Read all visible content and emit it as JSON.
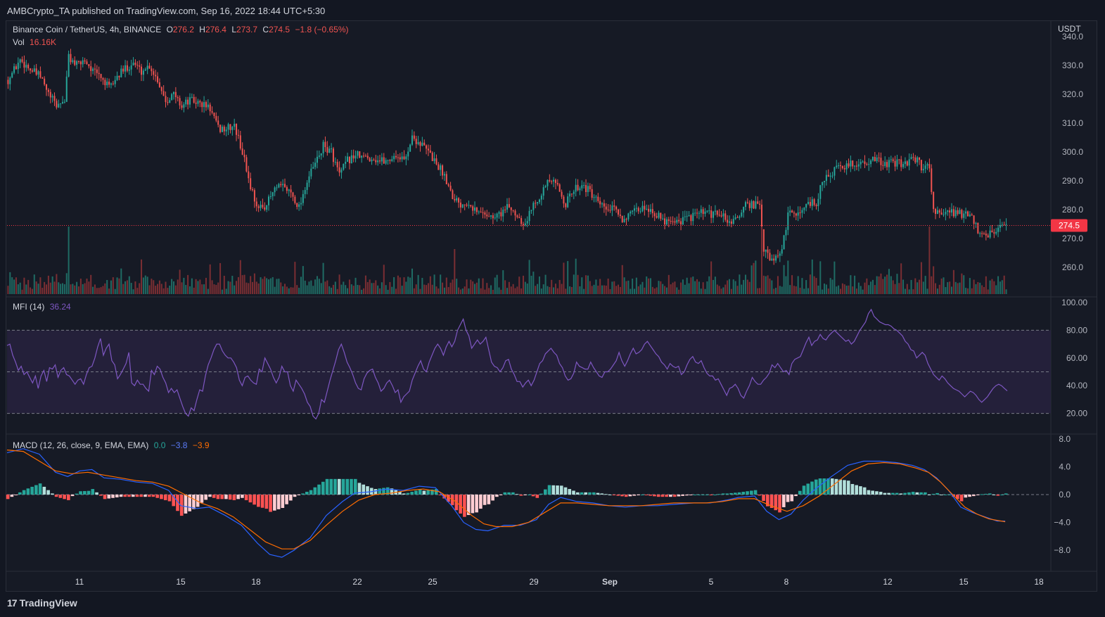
{
  "publisher_line": "AMBCrypto_TA published on TradingView.com, Sep 16, 2022 18:44 UTC+5:30",
  "footer_brand": "TradingView",
  "colors": {
    "up": "#26a69a",
    "down": "#ef5350",
    "up_vol": "#1f6b64",
    "down_vol": "#7a2e33",
    "mfi_line": "#7e57c2",
    "mfi_band": "#2a2342",
    "macd_line": "#2962ff",
    "signal_line": "#ff6d00",
    "hist_up_strong": "#26a69a",
    "hist_up_weak": "#b2dfdb",
    "hist_down_strong": "#ff5252",
    "hist_down_weak": "#ffcdd2",
    "price_tag": "#f23645"
  },
  "price_legend": {
    "symbol": "Binance Coin / TetherUS, 4h, BINANCE",
    "o_label": "O",
    "o_value": "276.2",
    "h_label": "H",
    "h_value": "276.4",
    "l_label": "L",
    "l_value": "273.7",
    "c_label": "C",
    "c_value": "274.5",
    "change": "−1.8 (−0.65%)"
  },
  "vol_legend": {
    "label": "Vol",
    "value": "16.16K"
  },
  "mfi_legend": {
    "label": "MFI (14)",
    "value": "36.24"
  },
  "macd_legend": {
    "label": "MACD (12, 26, close, 9, EMA, EMA)",
    "hist": "0.0",
    "macd": "−3.8",
    "signal": "−3.9"
  },
  "price_axis": {
    "currency": "USDT",
    "current_price": "274.5"
  },
  "chart_data": [
    {
      "type": "candlestick",
      "panel": "price",
      "ylim": [
        255,
        342
      ],
      "yticks": [
        "340.0",
        "330.0",
        "320.0",
        "310.0",
        "300.0",
        "290.0",
        "280.0",
        "270.0",
        "260.0"
      ],
      "x_ticks": [
        "11",
        "15",
        "18",
        "22",
        "25",
        "29",
        "Sep",
        "5",
        "8",
        "12",
        "15",
        "18"
      ],
      "close_path": [
        [
          0,
          325
        ],
        [
          6,
          332
        ],
        [
          12,
          328
        ],
        [
          16,
          326
        ],
        [
          20,
          320
        ],
        [
          24,
          316
        ],
        [
          28,
          318
        ],
        [
          30,
          333
        ],
        [
          34,
          330
        ],
        [
          38,
          332
        ],
        [
          42,
          328
        ],
        [
          46,
          326
        ],
        [
          50,
          322
        ],
        [
          54,
          326
        ],
        [
          58,
          329
        ],
        [
          62,
          331
        ],
        [
          66,
          328
        ],
        [
          70,
          330
        ],
        [
          74,
          325
        ],
        [
          78,
          318
        ],
        [
          82,
          320
        ],
        [
          86,
          316
        ],
        [
          90,
          318
        ],
        [
          94,
          317
        ],
        [
          98,
          316
        ],
        [
          100,
          315
        ],
        [
          104,
          308
        ],
        [
          108,
          308
        ],
        [
          112,
          309
        ],
        [
          116,
          300
        ],
        [
          120,
          288
        ],
        [
          124,
          280
        ],
        [
          128,
          282
        ],
        [
          132,
          287
        ],
        [
          136,
          288
        ],
        [
          140,
          286
        ],
        [
          144,
          281
        ],
        [
          148,
          290
        ],
        [
          152,
          296
        ],
        [
          156,
          302
        ],
        [
          160,
          300
        ],
        [
          164,
          292
        ],
        [
          168,
          297
        ],
        [
          172,
          299
        ],
        [
          176,
          298
        ],
        [
          180,
          298
        ],
        [
          184,
          297
        ],
        [
          188,
          297
        ],
        [
          192,
          299
        ],
        [
          196,
          297
        ],
        [
          200,
          305
        ],
        [
          204,
          303
        ],
        [
          208,
          300
        ],
        [
          212,
          296
        ],
        [
          216,
          292
        ],
        [
          220,
          285
        ],
        [
          224,
          282
        ],
        [
          228,
          283
        ],
        [
          232,
          279
        ],
        [
          236,
          279
        ],
        [
          240,
          277
        ],
        [
          244,
          279
        ],
        [
          248,
          281
        ],
        [
          252,
          278
        ],
        [
          256,
          275
        ],
        [
          260,
          282
        ],
        [
          264,
          286
        ],
        [
          268,
          290
        ],
        [
          272,
          288
        ],
        [
          276,
          282
        ],
        [
          280,
          287
        ],
        [
          284,
          289
        ],
        [
          288,
          286
        ],
        [
          292,
          282
        ],
        [
          296,
          280
        ],
        [
          300,
          280
        ],
        [
          304,
          277
        ],
        [
          308,
          278
        ],
        [
          312,
          280
        ],
        [
          316,
          281
        ],
        [
          320,
          279
        ],
        [
          324,
          276
        ],
        [
          328,
          277
        ],
        [
          332,
          276
        ],
        [
          336,
          277
        ],
        [
          340,
          278
        ],
        [
          344,
          279
        ],
        [
          348,
          278
        ],
        [
          352,
          279
        ],
        [
          356,
          276
        ],
        [
          360,
          276
        ],
        [
          364,
          281
        ],
        [
          368,
          282
        ],
        [
          372,
          281
        ],
        [
          374,
          266
        ],
        [
          378,
          262
        ],
        [
          382,
          264
        ],
        [
          384,
          270
        ],
        [
          386,
          278
        ],
        [
          390,
          279
        ],
        [
          394,
          280
        ],
        [
          396,
          283
        ],
        [
          400,
          282
        ],
        [
          402,
          288
        ],
        [
          406,
          292
        ],
        [
          410,
          294
        ],
        [
          414,
          295
        ],
        [
          418,
          296
        ],
        [
          422,
          296
        ],
        [
          426,
          297
        ],
        [
          430,
          297
        ],
        [
          434,
          296
        ],
        [
          438,
          296
        ],
        [
          442,
          296
        ],
        [
          446,
          297
        ],
        [
          450,
          297
        ],
        [
          452,
          295
        ],
        [
          456,
          295
        ],
        [
          458,
          280
        ],
        [
          462,
          278
        ],
        [
          466,
          279
        ],
        [
          470,
          279
        ],
        [
          474,
          278
        ],
        [
          478,
          276
        ],
        [
          480,
          272
        ],
        [
          484,
          270
        ],
        [
          486,
          272
        ],
        [
          490,
          273
        ],
        [
          494,
          274.5
        ]
      ],
      "current_price": 274.5
    },
    {
      "type": "bar",
      "panel": "volume",
      "label": "Vol",
      "value_shown": "16.16K"
    },
    {
      "type": "line",
      "panel": "mfi",
      "label": "MFI (14)",
      "ylim": [
        10,
        105
      ],
      "yticks": [
        "100.00",
        "80.00",
        "60.00",
        "40.00",
        "20.00"
      ],
      "band": [
        20,
        80
      ],
      "values": [
        69,
        70,
        62,
        57,
        51,
        54,
        48,
        50,
        46,
        42,
        47,
        38,
        47,
        51,
        43,
        53,
        52,
        55,
        46,
        51,
        53,
        48,
        47,
        44,
        41,
        44,
        45,
        41,
        48,
        53,
        54,
        60,
        68,
        74,
        62,
        67,
        70,
        58,
        55,
        45,
        48,
        52,
        56,
        64,
        42,
        40,
        44,
        41,
        41,
        38,
        36,
        51,
        48,
        54,
        52,
        46,
        42,
        35,
        38,
        35,
        37,
        31,
        25,
        20,
        18,
        24,
        22,
        30,
        37,
        36,
        47,
        55,
        60,
        66,
        70,
        70,
        65,
        62,
        60,
        60,
        57,
        53,
        44,
        40,
        46,
        47,
        44,
        42,
        41,
        52,
        50,
        60,
        56,
        52,
        46,
        42,
        46,
        54,
        50,
        50,
        40,
        36,
        44,
        41,
        38,
        34,
        28,
        25,
        18,
        16,
        20,
        30,
        28,
        36,
        44,
        51,
        58,
        66,
        70,
        64,
        57,
        53,
        48,
        42,
        38,
        37,
        45,
        49,
        51,
        52,
        46,
        42,
        36,
        38,
        42,
        44,
        40,
        35,
        37,
        28,
        32,
        34,
        36,
        44,
        49,
        54,
        58,
        52,
        50,
        57,
        62,
        67,
        70,
        67,
        62,
        68,
        72,
        68,
        72,
        80,
        84,
        88,
        80,
        76,
        67,
        70,
        73,
        70,
        72,
        75,
        66,
        57,
        54,
        53,
        50,
        53,
        58,
        59,
        52,
        48,
        43,
        43,
        39,
        42,
        44,
        40,
        44,
        50,
        56,
        58,
        63,
        65,
        67,
        64,
        62,
        56,
        53,
        47,
        44,
        45,
        49,
        57,
        54,
        53,
        52,
        52,
        57,
        53,
        50,
        47,
        46,
        50,
        50,
        52,
        55,
        58,
        64,
        58,
        54,
        58,
        63,
        67,
        63,
        64,
        66,
        70,
        72,
        69,
        66,
        63,
        61,
        57,
        55,
        52,
        56,
        54,
        53,
        54,
        48,
        50,
        55,
        59,
        61,
        57,
        56,
        58,
        53,
        49,
        47,
        47,
        44,
        45,
        41,
        37,
        33,
        38,
        39,
        41,
        38,
        33,
        31,
        36,
        40,
        46,
        43,
        41,
        41,
        44,
        46,
        49,
        55,
        53,
        56,
        53,
        50,
        51,
        48,
        56,
        59,
        60,
        61,
        66,
        71,
        75,
        69,
        72,
        73,
        77,
        74,
        73,
        76,
        78,
        80,
        78,
        76,
        74,
        72,
        73,
        70,
        72,
        76,
        80,
        83,
        86,
        92,
        95,
        90,
        88,
        86,
        85,
        84,
        84,
        83,
        81,
        80,
        78,
        76,
        72,
        70,
        66,
        65,
        60,
        62,
        64,
        62,
        56,
        52,
        48,
        46,
        44,
        47,
        45,
        42,
        40,
        38,
        37,
        36,
        34,
        32,
        34,
        36,
        35,
        33,
        30,
        28,
        30,
        32,
        35,
        38,
        40,
        41,
        40,
        38,
        36.24
      ]
    },
    {
      "type": "line",
      "panel": "macd",
      "label": "MACD (12, 26, close, 9, EMA, EMA)",
      "ylim": [
        -10,
        9
      ],
      "yticks": [
        "8.0",
        "4.0",
        "0.0",
        "−4.0",
        "−8.0"
      ],
      "macd_path": [
        [
          0,
          6
        ],
        [
          8,
          6.6
        ],
        [
          16,
          5.8
        ],
        [
          24,
          3.2
        ],
        [
          30,
          2.6
        ],
        [
          36,
          3.4
        ],
        [
          42,
          3.6
        ],
        [
          48,
          2.4
        ],
        [
          56,
          2.2
        ],
        [
          64,
          1.8
        ],
        [
          72,
          1.6
        ],
        [
          80,
          0.6
        ],
        [
          86,
          -1.6
        ],
        [
          94,
          -2
        ],
        [
          100,
          -1.8
        ],
        [
          108,
          -3
        ],
        [
          116,
          -4.4
        ],
        [
          124,
          -7
        ],
        [
          130,
          -8.6
        ],
        [
          136,
          -9
        ],
        [
          142,
          -8
        ],
        [
          150,
          -6.2
        ],
        [
          158,
          -3
        ],
        [
          166,
          -1
        ],
        [
          172,
          0.2
        ],
        [
          180,
          0.4
        ],
        [
          188,
          0.8
        ],
        [
          196,
          0.6
        ],
        [
          204,
          1.2
        ],
        [
          212,
          1
        ],
        [
          220,
          -1.6
        ],
        [
          226,
          -4
        ],
        [
          232,
          -5
        ],
        [
          238,
          -5.2
        ],
        [
          246,
          -4.4
        ],
        [
          254,
          -4.4
        ],
        [
          262,
          -3.6
        ],
        [
          268,
          -1.4
        ],
        [
          274,
          -0.4
        ],
        [
          282,
          -1
        ],
        [
          290,
          -1.2
        ],
        [
          298,
          -1.6
        ],
        [
          306,
          -1.8
        ],
        [
          314,
          -1.6
        ],
        [
          322,
          -1.6
        ],
        [
          330,
          -1.4
        ],
        [
          340,
          -1.2
        ],
        [
          348,
          -1.2
        ],
        [
          356,
          -0.8
        ],
        [
          362,
          -0.4
        ],
        [
          370,
          -0.2
        ],
        [
          376,
          -2.4
        ],
        [
          382,
          -3.6
        ],
        [
          388,
          -2.8
        ],
        [
          394,
          -0.8
        ],
        [
          400,
          0.8
        ],
        [
          408,
          2.6
        ],
        [
          416,
          4.2
        ],
        [
          424,
          4.8
        ],
        [
          432,
          4.8
        ],
        [
          440,
          4.6
        ],
        [
          448,
          4.2
        ],
        [
          454,
          3.6
        ],
        [
          460,
          2.4
        ],
        [
          466,
          0.6
        ],
        [
          472,
          -1.8
        ],
        [
          478,
          -2.6
        ],
        [
          484,
          -3.2
        ],
        [
          490,
          -3.8
        ],
        [
          494,
          -3.8
        ]
      ],
      "signal_path": [
        [
          0,
          6.4
        ],
        [
          8,
          6.2
        ],
        [
          16,
          4.8
        ],
        [
          24,
          3.4
        ],
        [
          32,
          3
        ],
        [
          40,
          3.2
        ],
        [
          48,
          2.8
        ],
        [
          56,
          2.4
        ],
        [
          64,
          2
        ],
        [
          72,
          1.8
        ],
        [
          80,
          1.2
        ],
        [
          88,
          0
        ],
        [
          96,
          -1.2
        ],
        [
          104,
          -2
        ],
        [
          112,
          -3.2
        ],
        [
          120,
          -5
        ],
        [
          128,
          -6.8
        ],
        [
          136,
          -7.8
        ],
        [
          142,
          -7.8
        ],
        [
          150,
          -6.6
        ],
        [
          158,
          -4.4
        ],
        [
          166,
          -2.4
        ],
        [
          174,
          -0.8
        ],
        [
          182,
          0
        ],
        [
          190,
          0.2
        ],
        [
          198,
          0.6
        ],
        [
          206,
          0.8
        ],
        [
          214,
          0.4
        ],
        [
          222,
          -1
        ],
        [
          230,
          -3
        ],
        [
          236,
          -4.2
        ],
        [
          242,
          -4.6
        ],
        [
          250,
          -4.6
        ],
        [
          258,
          -4
        ],
        [
          266,
          -2.6
        ],
        [
          274,
          -1.2
        ],
        [
          282,
          -1.2
        ],
        [
          290,
          -1.4
        ],
        [
          298,
          -1.6
        ],
        [
          306,
          -1.6
        ],
        [
          314,
          -1.6
        ],
        [
          322,
          -1.4
        ],
        [
          330,
          -1.2
        ],
        [
          338,
          -1.2
        ],
        [
          346,
          -1.2
        ],
        [
          354,
          -1
        ],
        [
          362,
          -0.6
        ],
        [
          370,
          -0.6
        ],
        [
          378,
          -1.6
        ],
        [
          386,
          -2.4
        ],
        [
          394,
          -1.6
        ],
        [
          402,
          -0.2
        ],
        [
          410,
          1.6
        ],
        [
          418,
          3.4
        ],
        [
          426,
          4.4
        ],
        [
          434,
          4.6
        ],
        [
          442,
          4.4
        ],
        [
          450,
          3.8
        ],
        [
          456,
          3.2
        ],
        [
          462,
          1.8
        ],
        [
          468,
          0
        ],
        [
          474,
          -1.8
        ],
        [
          480,
          -2.8
        ],
        [
          486,
          -3.5
        ],
        [
          494,
          -3.9
        ]
      ],
      "hist_value_shown": "0.0",
      "macd_value_shown": "−3.8",
      "signal_value_shown": "−3.9"
    }
  ]
}
